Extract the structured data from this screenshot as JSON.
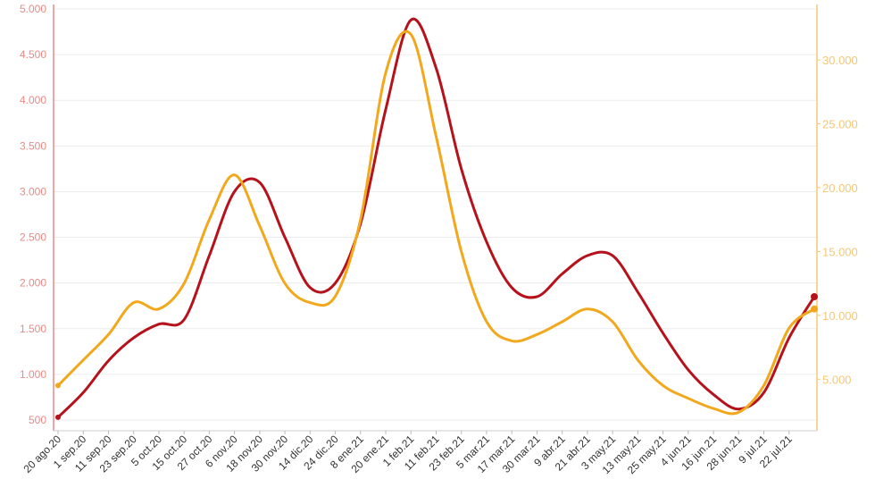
{
  "colors": {
    "left_axis": "#e98a86",
    "right_axis": "#f4c878",
    "series_red": "#b5121b",
    "series_orange": "#f2a81d",
    "grid": "#ececec",
    "tick_text_x": "#333333"
  },
  "chart_data": {
    "type": "line",
    "title": "",
    "xlabel": "",
    "ylabel": "",
    "grid": true,
    "legend": "none",
    "x_ticks": [
      "20 ago.20",
      "1 sep.20",
      "11 sep.20",
      "23 sep.20",
      "5 oct.20",
      "15 oct.20",
      "27 oct.20",
      "6 nov.20",
      "18 nov.20",
      "30 nov.20",
      "14 dic.20",
      "24 dic.20",
      "8 ene.21",
      "20 ene.21",
      "1 feb.21",
      "11 feb.21",
      "23 feb.21",
      "5 mar.21",
      "17 mar.21",
      "30 mar.21",
      "9 abr.21",
      "21 abr.21",
      "3 may.21",
      "13 may.21",
      "25 may.21",
      "4 jun.21",
      "16 jun.21",
      "28 jun.21",
      "9 jul.21",
      "22 jul.21"
    ],
    "y_left": {
      "ylim": [
        500,
        5000
      ],
      "ticks": [
        "500",
        "1.000",
        "1.500",
        "2.000",
        "2.500",
        "3.000",
        "3.500",
        "4.000",
        "4.500",
        "5.000"
      ]
    },
    "y_right": {
      "ylim": [
        1800,
        34000
      ],
      "ticks": [
        "5.000",
        "10.000",
        "15.000",
        "20.000",
        "25.000",
        "30.000"
      ],
      "tick_values": [
        5000,
        10000,
        15000,
        20000,
        25000,
        30000
      ]
    },
    "series": [
      {
        "axis": "left",
        "color": "#b5121b",
        "points": [
          [
            "20 ago.20",
            530
          ],
          [
            "1 sep.20",
            800
          ],
          [
            "11 sep.20",
            1150
          ],
          [
            "23 sep.20",
            1400
          ],
          [
            "5 oct.20",
            1550
          ],
          [
            "15 oct.20",
            1600
          ],
          [
            "27 oct.20",
            2300
          ],
          [
            "6 nov.20",
            3000
          ],
          [
            "18 nov.20",
            3100
          ],
          [
            "30 nov.20",
            2500
          ],
          [
            "14 dic.20",
            1950
          ],
          [
            "24 dic.20",
            2000
          ],
          [
            "8 ene.21",
            2650
          ],
          [
            "20 ene.21",
            3900
          ],
          [
            "1 feb.21",
            4880
          ],
          [
            "11 feb.21",
            4350
          ],
          [
            "23 feb.21",
            3250
          ],
          [
            "5 mar.21",
            2450
          ],
          [
            "17 mar.21",
            1950
          ],
          [
            "30 mar.21",
            1850
          ],
          [
            "9 abr.21",
            2100
          ],
          [
            "21 abr.21",
            2300
          ],
          [
            "3 may.21",
            2300
          ],
          [
            "13 may.21",
            1900
          ],
          [
            "25 may.21",
            1450
          ],
          [
            "4 jun.21",
            1050
          ],
          [
            "16 jun.21",
            780
          ],
          [
            "28 jun.21",
            620
          ],
          [
            "9 jul.21",
            800
          ],
          [
            "22 jul.21",
            1400
          ],
          [
            "29 jul.21",
            1850
          ]
        ]
      },
      {
        "axis": "right",
        "color": "#f2a81d",
        "points": [
          [
            "20 ago.20",
            4500
          ],
          [
            "1 sep.20",
            6500
          ],
          [
            "11 sep.20",
            8500
          ],
          [
            "23 sep.20",
            11000
          ],
          [
            "5 oct.20",
            10500
          ],
          [
            "15 oct.20",
            12500
          ],
          [
            "27 oct.20",
            17500
          ],
          [
            "6 nov.20",
            21000
          ],
          [
            "18 nov.20",
            17000
          ],
          [
            "30 nov.20",
            12500
          ],
          [
            "14 dic.20",
            11000
          ],
          [
            "24 dic.20",
            11500
          ],
          [
            "8 ene.21",
            17500
          ],
          [
            "20 ene.21",
            29000
          ],
          [
            "1 feb.21",
            32000
          ],
          [
            "11 feb.21",
            24000
          ],
          [
            "23 feb.21",
            15000
          ],
          [
            "5 mar.21",
            9500
          ],
          [
            "17 mar.21",
            8000
          ],
          [
            "30 mar.21",
            8500
          ],
          [
            "9 abr.21",
            9500
          ],
          [
            "21 abr.21",
            10500
          ],
          [
            "3 may.21",
            9500
          ],
          [
            "13 may.21",
            6500
          ],
          [
            "25 may.21",
            4500
          ],
          [
            "4 jun.21",
            3500
          ],
          [
            "16 jun.21",
            2700
          ],
          [
            "28 jun.21",
            2400
          ],
          [
            "9 jul.21",
            4500
          ],
          [
            "22 jul.21",
            9000
          ],
          [
            "29 jul.21",
            10500
          ]
        ]
      }
    ]
  }
}
